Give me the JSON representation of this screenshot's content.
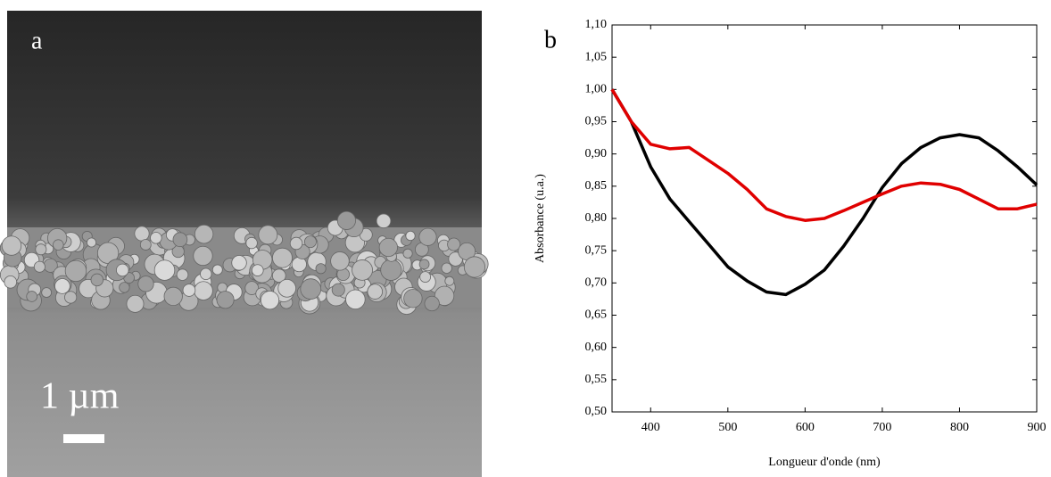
{
  "panel_a": {
    "label": "a",
    "scale_bar": "1 µm"
  },
  "chart_data": {
    "type": "line",
    "panel_label": "b",
    "x_label": "Longueur d'onde (nm)",
    "y_label": "Absorbance (u.a.)",
    "x": [
      350,
      375,
      400,
      425,
      450,
      475,
      500,
      525,
      550,
      575,
      600,
      625,
      650,
      675,
      700,
      725,
      750,
      775,
      800,
      825,
      850,
      875,
      900
    ],
    "series": [
      {
        "color": "#000000",
        "values": [
          1.0,
          0.95,
          0.88,
          0.83,
          0.795,
          0.76,
          0.725,
          0.703,
          0.686,
          0.682,
          0.698,
          0.72,
          0.757,
          0.8,
          0.848,
          0.885,
          0.91,
          0.925,
          0.93,
          0.925,
          0.905,
          0.88,
          0.852
        ]
      },
      {
        "color": "#e00000",
        "values": [
          1.0,
          0.95,
          0.915,
          0.908,
          0.91,
          0.89,
          0.87,
          0.845,
          0.815,
          0.803,
          0.797,
          0.8,
          0.812,
          0.825,
          0.838,
          0.85,
          0.855,
          0.853,
          0.845,
          0.83,
          0.815,
          0.815,
          0.822
        ]
      }
    ],
    "xlim": [
      350,
      900
    ],
    "ylim": [
      0.5,
      1.1
    ],
    "xticks": [
      400,
      500,
      600,
      700,
      800,
      900
    ],
    "yticks": [
      {
        "value": 0.5,
        "label": "0,50"
      },
      {
        "value": 0.55,
        "label": "0,55"
      },
      {
        "value": 0.6,
        "label": "0,60"
      },
      {
        "value": 0.65,
        "label": "0,65"
      },
      {
        "value": 0.7,
        "label": "0,70"
      },
      {
        "value": 0.75,
        "label": "0,75"
      },
      {
        "value": 0.8,
        "label": "0,80"
      },
      {
        "value": 0.85,
        "label": "0,85"
      },
      {
        "value": 0.9,
        "label": "0,90"
      },
      {
        "value": 0.95,
        "label": "0,95"
      },
      {
        "value": 1.0,
        "label": "1,00"
      },
      {
        "value": 1.05,
        "label": "1,05"
      },
      {
        "value": 1.1,
        "label": "1,10"
      }
    ]
  }
}
